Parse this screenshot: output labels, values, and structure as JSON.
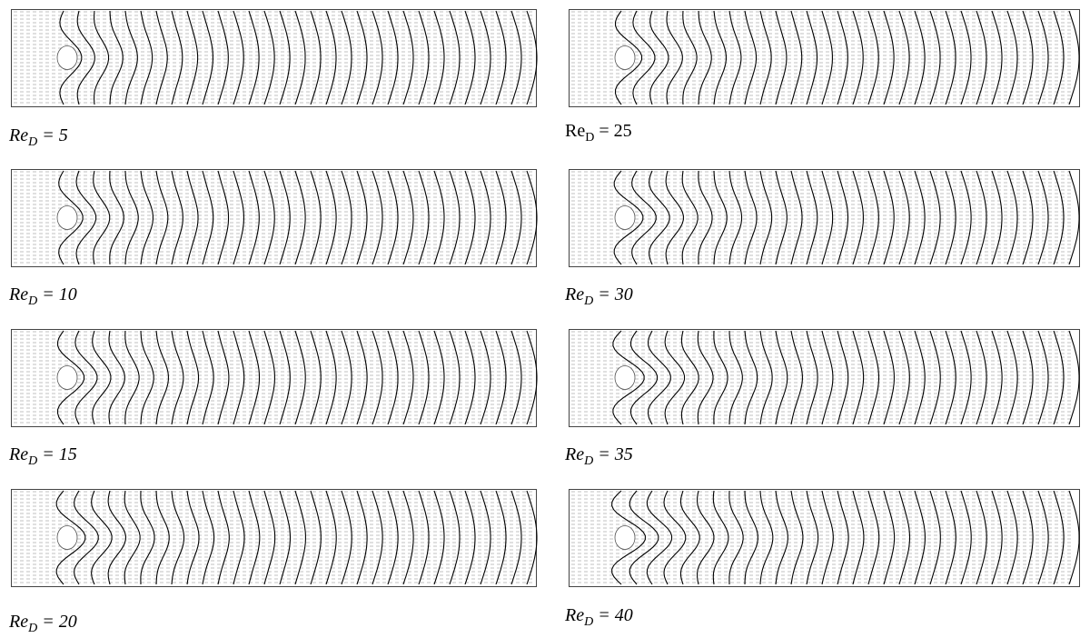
{
  "panels": [
    {
      "label": {
        "base": "Re",
        "sub": "D",
        "rest": " = 5"
      },
      "italic": true
    },
    {
      "label": {
        "base": "Re",
        "sub": "D",
        "rest": " = 10"
      },
      "italic": true
    },
    {
      "label": {
        "base": "Re",
        "sub": "D",
        "rest": " = 15"
      },
      "italic": true
    },
    {
      "label": {
        "base": "Re",
        "sub": "D",
        "rest": " = 20"
      },
      "italic": true
    },
    {
      "label": {
        "base": "Re",
        "sub": "D",
        "rest": " = 25"
      },
      "italic": false
    },
    {
      "label": {
        "base": "Re",
        "sub": "D",
        "rest": " = 30"
      },
      "italic": true
    },
    {
      "label": {
        "base": "Re",
        "sub": "D",
        "rest": " = 35"
      },
      "italic": true
    },
    {
      "label": {
        "base": "Re",
        "sub": "D",
        "rest": " = 40"
      },
      "italic": true
    }
  ]
}
